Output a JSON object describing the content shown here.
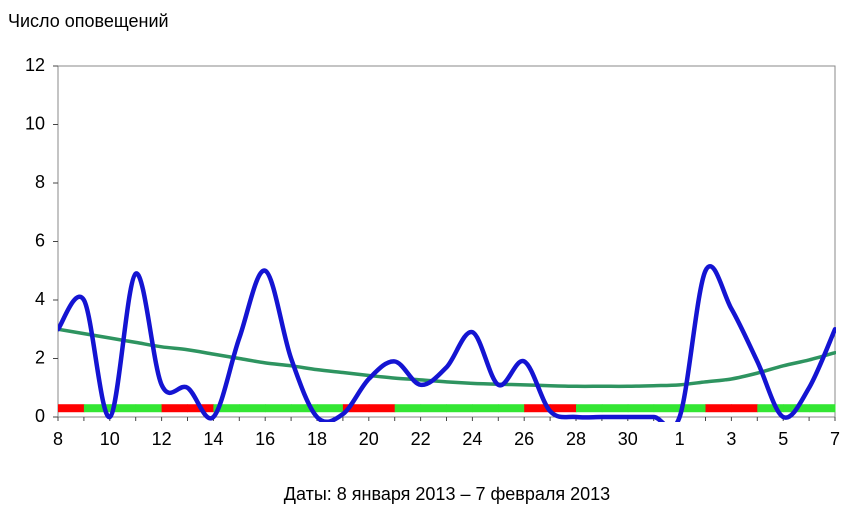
{
  "chart_data": {
    "type": "line",
    "y_axis_label": "Число оповещений",
    "x_axis_label": "Даты: 8 января 2013 – 7 февраля 2013",
    "categories": [
      "8",
      null,
      "10",
      null,
      "12",
      null,
      "14",
      null,
      "16",
      null,
      "18",
      null,
      "20",
      null,
      "22",
      null,
      "24",
      null,
      "26",
      null,
      "28",
      null,
      "30",
      null,
      "1",
      null,
      "3",
      null,
      "5",
      null,
      "7"
    ],
    "series": [
      {
        "color": "#1414d2",
        "values": [
          3.0,
          4.0,
          0,
          4.9,
          1.1,
          1.0,
          0,
          2.7,
          5.0,
          2.0,
          0,
          0.1,
          1.3,
          1.9,
          1.1,
          1.7,
          2.9,
          1.1,
          1.9,
          0.2,
          0,
          0,
          0,
          0,
          0,
          5.0,
          3.7,
          1.9,
          0,
          1.0,
          3.0
        ]
      },
      {
        "color": "#2e9460",
        "values": [
          3.0,
          2.85,
          2.7,
          2.55,
          2.4,
          2.3,
          2.15,
          2.0,
          1.85,
          1.75,
          1.62,
          1.52,
          1.42,
          1.33,
          1.27,
          1.2,
          1.15,
          1.12,
          1.1,
          1.07,
          1.05,
          1.05,
          1.05,
          1.07,
          1.1,
          1.2,
          1.3,
          1.5,
          1.75,
          1.95,
          2.2
        ]
      }
    ],
    "band": {
      "value": 0.3,
      "colors": [
        "#ff0000",
        "#33e633",
        "#33e633",
        "#33e633",
        "#ff0000",
        "#ff0000",
        "#33e633",
        "#33e633",
        "#33e633",
        "#33e633",
        "#33e633",
        "#ff0000",
        "#ff0000",
        "#33e633",
        "#33e633",
        "#33e633",
        "#33e633",
        "#33e633",
        "#ff0000",
        "#ff0000",
        "#33e633",
        "#33e633",
        "#33e633",
        "#33e633",
        "#33e633",
        "#ff0000",
        "#ff0000",
        "#33e633",
        "#33e633",
        "#33e633"
      ]
    },
    "ylim": [
      0,
      12
    ],
    "yticks": [
      0,
      2,
      4,
      6,
      8,
      10,
      12
    ],
    "grid": false
  }
}
